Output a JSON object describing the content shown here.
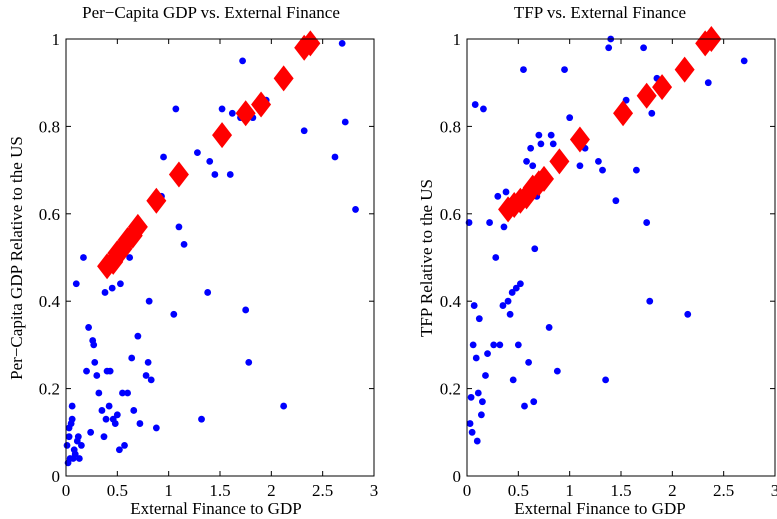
{
  "colors": {
    "scatter": "#0000ff",
    "fitted": "#ff0000",
    "axis": "#000000",
    "background": "#ffffff"
  },
  "chart_data": [
    {
      "type": "scatter",
      "title": "Per−Capita GDP vs. External Finance",
      "xlabel": "External Finance to GDP",
      "ylabel": "Per−Capita GDP Relative to the US",
      "xlim": [
        0,
        3
      ],
      "ylim": [
        0,
        1
      ],
      "xticks": [
        "0",
        "0.5",
        "1",
        "1.5",
        "2",
        "2.5",
        "3"
      ],
      "yticks": [
        "0",
        "0.2",
        "0.4",
        "0.6",
        "0.8",
        "1"
      ],
      "grid": false,
      "series": [
        {
          "marker": "circle",
          "color": "#0000ff",
          "points": [
            [
              0.01,
              0.07
            ],
            [
              0.02,
              0.03
            ],
            [
              0.03,
              0.09
            ],
            [
              0.03,
              0.11
            ],
            [
              0.04,
              0.04
            ],
            [
              0.05,
              0.12
            ],
            [
              0.06,
              0.13
            ],
            [
              0.06,
              0.16
            ],
            [
              0.07,
              0.04
            ],
            [
              0.08,
              0.06
            ],
            [
              0.09,
              0.05
            ],
            [
              0.1,
              0.44
            ],
            [
              0.11,
              0.08
            ],
            [
              0.12,
              0.09
            ],
            [
              0.13,
              0.04
            ],
            [
              0.15,
              0.07
            ],
            [
              0.17,
              0.5
            ],
            [
              0.2,
              0.24
            ],
            [
              0.22,
              0.34
            ],
            [
              0.24,
              0.1
            ],
            [
              0.26,
              0.31
            ],
            [
              0.27,
              0.3
            ],
            [
              0.28,
              0.26
            ],
            [
              0.3,
              0.23
            ],
            [
              0.32,
              0.19
            ],
            [
              0.35,
              0.15
            ],
            [
              0.37,
              0.09
            ],
            [
              0.38,
              0.42
            ],
            [
              0.39,
              0.13
            ],
            [
              0.4,
              0.24
            ],
            [
              0.42,
              0.16
            ],
            [
              0.43,
              0.24
            ],
            [
              0.45,
              0.43
            ],
            [
              0.46,
              0.13
            ],
            [
              0.48,
              0.12
            ],
            [
              0.5,
              0.14
            ],
            [
              0.52,
              0.06
            ],
            [
              0.53,
              0.44
            ],
            [
              0.55,
              0.19
            ],
            [
              0.57,
              0.07
            ],
            [
              0.6,
              0.19
            ],
            [
              0.62,
              0.5
            ],
            [
              0.64,
              0.27
            ],
            [
              0.66,
              0.15
            ],
            [
              0.7,
              0.32
            ],
            [
              0.72,
              0.12
            ],
            [
              0.78,
              0.23
            ],
            [
              0.8,
              0.26
            ],
            [
              0.81,
              0.4
            ],
            [
              0.83,
              0.22
            ],
            [
              0.88,
              0.11
            ],
            [
              0.93,
              0.64
            ],
            [
              0.95,
              0.73
            ],
            [
              1.05,
              0.37
            ],
            [
              1.07,
              0.84
            ],
            [
              1.1,
              0.57
            ],
            [
              1.15,
              0.53
            ],
            [
              1.28,
              0.74
            ],
            [
              1.32,
              0.13
            ],
            [
              1.38,
              0.42
            ],
            [
              1.4,
              0.72
            ],
            [
              1.45,
              0.69
            ],
            [
              1.52,
              0.84
            ],
            [
              1.6,
              0.69
            ],
            [
              1.62,
              0.83
            ],
            [
              1.7,
              0.82
            ],
            [
              1.72,
              0.95
            ],
            [
              1.75,
              0.38
            ],
            [
              1.78,
              0.26
            ],
            [
              1.82,
              0.82
            ],
            [
              1.95,
              0.86
            ],
            [
              2.12,
              0.16
            ],
            [
              2.32,
              0.79
            ],
            [
              2.62,
              0.73
            ],
            [
              2.69,
              0.99
            ],
            [
              2.72,
              0.81
            ],
            [
              2.82,
              0.61
            ]
          ]
        },
        {
          "marker": "diamond",
          "color": "#ff0000",
          "points": [
            [
              0.4,
              0.48
            ],
            [
              0.46,
              0.49
            ],
            [
              0.5,
              0.51
            ],
            [
              0.55,
              0.52
            ],
            [
              0.6,
              0.54
            ],
            [
              0.65,
              0.55
            ],
            [
              0.7,
              0.57
            ],
            [
              0.88,
              0.63
            ],
            [
              1.1,
              0.69
            ],
            [
              1.52,
              0.78
            ],
            [
              1.75,
              0.83
            ],
            [
              1.9,
              0.85
            ],
            [
              2.12,
              0.91
            ],
            [
              2.32,
              0.98
            ],
            [
              2.38,
              0.99
            ]
          ]
        }
      ]
    },
    {
      "type": "scatter",
      "title": "TFP vs. External Finance",
      "xlabel": "External Finance to GDP",
      "ylabel": "TFP Relative to the US",
      "xlim": [
        0,
        3
      ],
      "ylim": [
        0,
        1
      ],
      "xticks": [
        "0",
        "0.5",
        "1",
        "1.5",
        "2",
        "2.5",
        "3"
      ],
      "yticks": [
        "0",
        "0.2",
        "0.4",
        "0.6",
        "0.8",
        "1"
      ],
      "grid": false,
      "series": [
        {
          "marker": "circle",
          "color": "#0000ff",
          "points": [
            [
              0.02,
              0.58
            ],
            [
              0.03,
              0.12
            ],
            [
              0.04,
              0.18
            ],
            [
              0.05,
              0.1
            ],
            [
              0.06,
              0.3
            ],
            [
              0.07,
              0.39
            ],
            [
              0.08,
              0.85
            ],
            [
              0.09,
              0.27
            ],
            [
              0.1,
              0.08
            ],
            [
              0.11,
              0.19
            ],
            [
              0.12,
              0.36
            ],
            [
              0.14,
              0.14
            ],
            [
              0.15,
              0.17
            ],
            [
              0.16,
              0.84
            ],
            [
              0.18,
              0.23
            ],
            [
              0.2,
              0.28
            ],
            [
              0.22,
              0.58
            ],
            [
              0.26,
              0.3
            ],
            [
              0.28,
              0.5
            ],
            [
              0.3,
              0.64
            ],
            [
              0.32,
              0.3
            ],
            [
              0.35,
              0.39
            ],
            [
              0.36,
              0.57
            ],
            [
              0.38,
              0.65
            ],
            [
              0.4,
              0.4
            ],
            [
              0.42,
              0.37
            ],
            [
              0.44,
              0.42
            ],
            [
              0.45,
              0.22
            ],
            [
              0.48,
              0.43
            ],
            [
              0.5,
              0.3
            ],
            [
              0.52,
              0.44
            ],
            [
              0.55,
              0.93
            ],
            [
              0.56,
              0.16
            ],
            [
              0.58,
              0.72
            ],
            [
              0.6,
              0.26
            ],
            [
              0.62,
              0.75
            ],
            [
              0.64,
              0.71
            ],
            [
              0.65,
              0.17
            ],
            [
              0.66,
              0.52
            ],
            [
              0.68,
              0.64
            ],
            [
              0.7,
              0.78
            ],
            [
              0.72,
              0.76
            ],
            [
              0.76,
              0.69
            ],
            [
              0.8,
              0.34
            ],
            [
              0.82,
              0.78
            ],
            [
              0.84,
              0.76
            ],
            [
              0.88,
              0.24
            ],
            [
              0.95,
              0.93
            ],
            [
              1.0,
              0.82
            ],
            [
              1.1,
              0.71
            ],
            [
              1.15,
              0.75
            ],
            [
              1.28,
              0.72
            ],
            [
              1.32,
              0.7
            ],
            [
              1.35,
              0.22
            ],
            [
              1.38,
              0.98
            ],
            [
              1.4,
              1.0
            ],
            [
              1.45,
              0.63
            ],
            [
              1.55,
              0.86
            ],
            [
              1.65,
              0.7
            ],
            [
              1.72,
              0.98
            ],
            [
              1.75,
              0.58
            ],
            [
              1.78,
              0.4
            ],
            [
              1.8,
              0.83
            ],
            [
              1.85,
              0.91
            ],
            [
              2.15,
              0.37
            ],
            [
              2.35,
              0.9
            ],
            [
              2.7,
              0.95
            ]
          ]
        },
        {
          "marker": "diamond",
          "color": "#ff0000",
          "points": [
            [
              0.4,
              0.61
            ],
            [
              0.46,
              0.62
            ],
            [
              0.52,
              0.63
            ],
            [
              0.58,
              0.64
            ],
            [
              0.64,
              0.66
            ],
            [
              0.7,
              0.67
            ],
            [
              0.75,
              0.68
            ],
            [
              0.9,
              0.72
            ],
            [
              1.1,
              0.77
            ],
            [
              1.52,
              0.83
            ],
            [
              1.75,
              0.87
            ],
            [
              1.9,
              0.89
            ],
            [
              2.12,
              0.93
            ],
            [
              2.32,
              0.99
            ],
            [
              2.38,
              1.0
            ]
          ]
        }
      ]
    }
  ]
}
